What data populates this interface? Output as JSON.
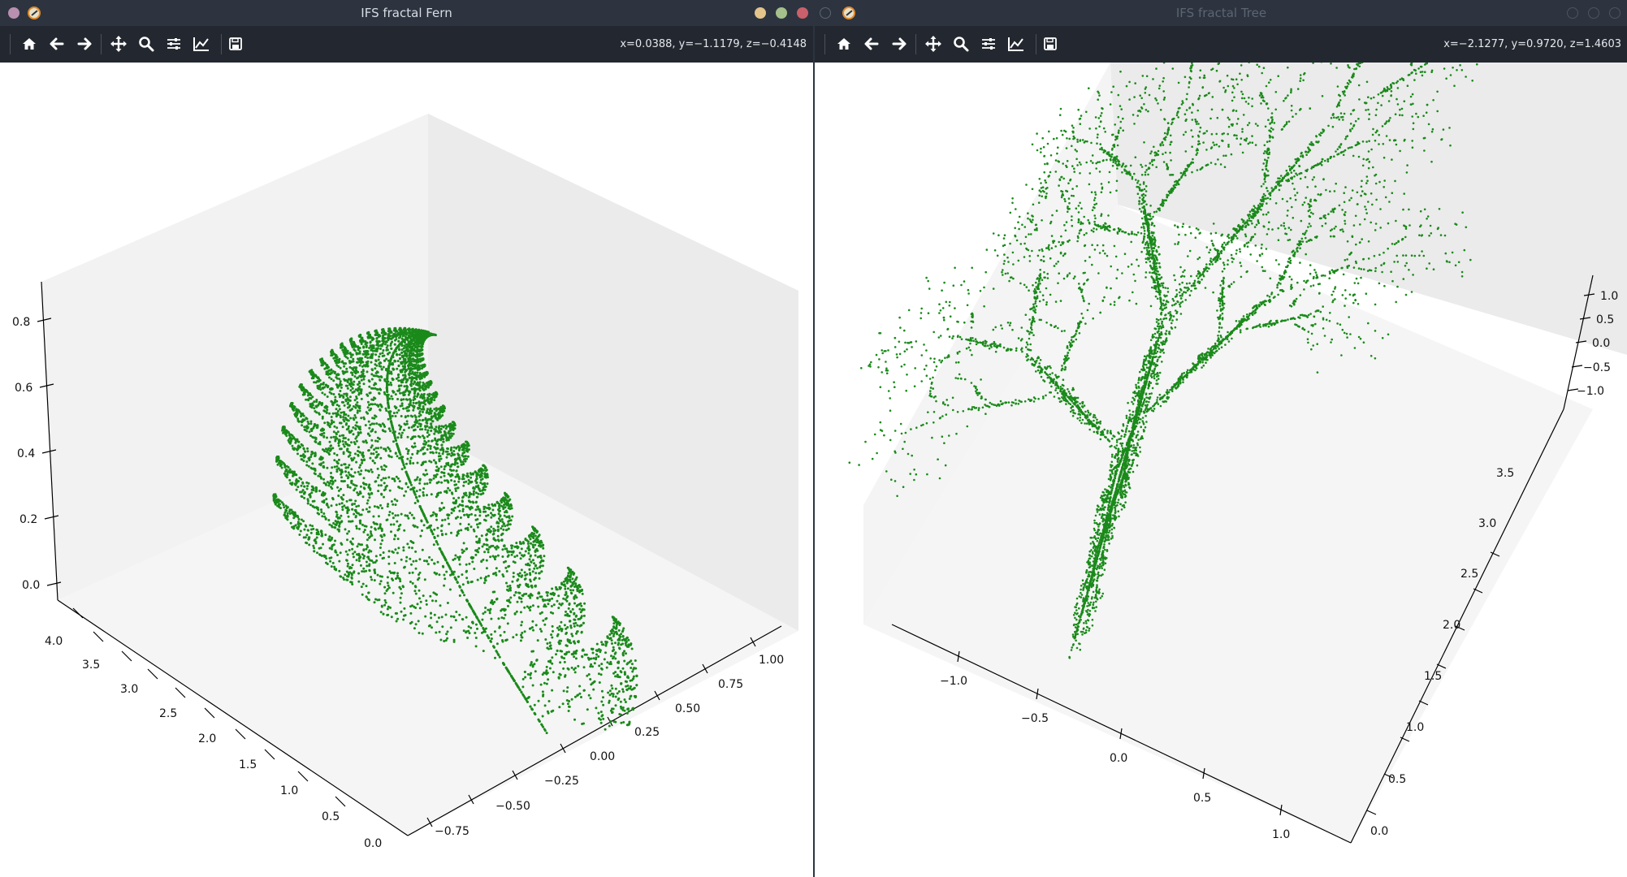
{
  "windows": {
    "fern": {
      "title": "IFS fractal Fern",
      "coords": "x=0.0388, y=−1.1179, z=−0.4148"
    },
    "tree": {
      "title": "IFS fractal Tree",
      "coords": "x=−2.1277, y=0.9720, z=1.4603"
    }
  },
  "toolbar": {
    "buttons": [
      "home-icon",
      "back-arrow-icon",
      "forward-arrow-icon",
      "pan-icon",
      "zoom-icon",
      "configure-subplots-icon",
      "edit-axis-icon",
      "save-icon"
    ]
  },
  "colors": {
    "points": "#1a8a1a",
    "pane": "#f2f2f2",
    "titlebar": "#2d3440",
    "toolbar": "#232830",
    "close": "#c9606a",
    "maximize": "#a5c08a",
    "minimize": "#e3c48a"
  },
  "chart_data": [
    {
      "type": "scatter",
      "projection": "3d",
      "title": "",
      "axes": {
        "x_ticks": [
          "−0.75",
          "−0.50",
          "−0.25",
          "0.00",
          "0.25",
          "0.50",
          "0.75",
          "1.00"
        ],
        "y_ticks": [
          "0.0",
          "0.5",
          "1.0",
          "1.5",
          "2.0",
          "2.5",
          "3.0",
          "3.5",
          "4.0"
        ],
        "z_ticks": [
          "0.0",
          "0.2",
          "0.4",
          "0.6",
          "0.8"
        ]
      },
      "series": [
        {
          "marker": "point",
          "points_shape": "IFS fern"
        }
      ]
    },
    {
      "type": "scatter",
      "projection": "3d",
      "title": "",
      "axes": {
        "x_ticks": [
          "−1.0",
          "−0.5",
          "0.0",
          "0.5",
          "1.0"
        ],
        "y_ticks": [
          "0.0",
          "0.5",
          "1.0",
          "1.5",
          "2.0",
          "2.5",
          "3.0",
          "3.5"
        ],
        "z_ticks": [
          "1.0",
          "0.5",
          "0.0",
          "−0.5",
          "−1.0"
        ]
      },
      "series": [
        {
          "marker": "point",
          "points_shape": "IFS tree"
        }
      ]
    }
  ]
}
